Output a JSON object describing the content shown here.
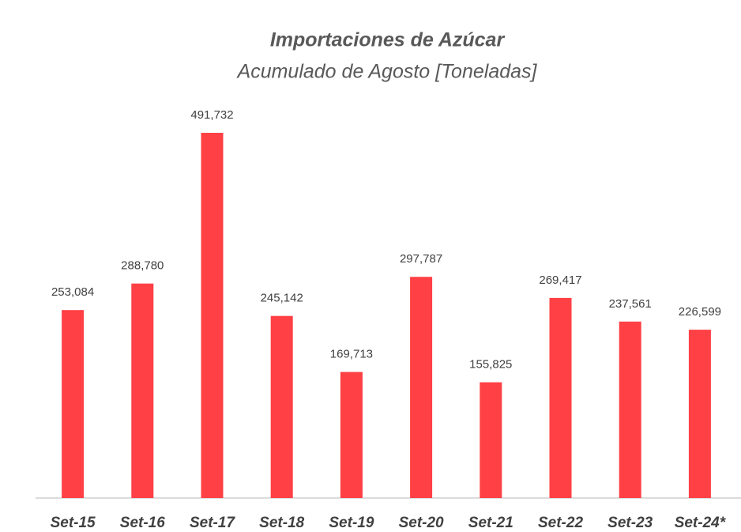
{
  "chart_data": {
    "type": "bar",
    "title": "Importaciones de Azúcar",
    "subtitle": "Acumulado de Agosto [Toneladas]",
    "categories": [
      "Set-15",
      "Set-16",
      "Set-17",
      "Set-18",
      "Set-19",
      "Set-20",
      "Set-21",
      "Set-22",
      "Set-23",
      "Set-24*"
    ],
    "values": [
      253084,
      288780,
      491732,
      245142,
      169713,
      297787,
      155825,
      269417,
      237561,
      226599
    ],
    "value_labels": [
      "253,084",
      "288,780",
      "491,732",
      "245,142",
      "169,713",
      "297,787",
      "155,825",
      "269,417",
      "237,561",
      "226,599"
    ],
    "color": "#ff4045"
  }
}
